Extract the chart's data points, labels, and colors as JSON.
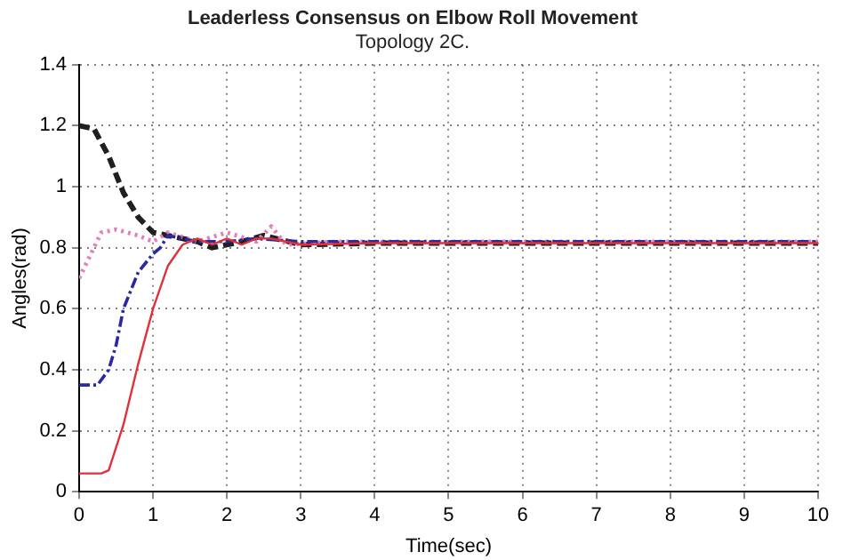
{
  "chart_data": {
    "type": "line",
    "title": "Leaderless Consensus on Elbow Roll Movement",
    "subtitle": "Topology 2C.",
    "xlabel": "Time(sec)",
    "ylabel": "Angles(rad)",
    "xlim": [
      0,
      10
    ],
    "xticks": [
      0,
      1,
      2,
      3,
      4,
      5,
      6,
      7,
      8,
      9,
      10
    ],
    "ylim": [
      0,
      1.4
    ],
    "yticks": [
      0,
      0.2,
      0.4,
      0.6,
      0.8,
      1,
      1.2,
      1.4
    ],
    "grid": true,
    "marker": "none",
    "series": [
      {
        "color": "#e0303a",
        "line_style": "solid",
        "x": [
          0,
          0.3,
          0.4,
          0.6,
          0.8,
          1.0,
          1.2,
          1.4,
          1.6,
          1.8,
          2.0,
          2.2,
          2.4,
          2.6,
          3,
          4,
          10
        ],
        "values": [
          0.06,
          0.06,
          0.07,
          0.22,
          0.42,
          0.6,
          0.74,
          0.81,
          0.83,
          0.81,
          0.83,
          0.81,
          0.83,
          0.83,
          0.81,
          0.815,
          0.815
        ]
      },
      {
        "color": "#2a2aa0",
        "line_style": "dashdot",
        "x": [
          0,
          0.25,
          0.4,
          0.5,
          0.6,
          0.8,
          1.0,
          1.1,
          1.2,
          1.4,
          1.6,
          2,
          2.4,
          3,
          10
        ],
        "values": [
          0.35,
          0.35,
          0.4,
          0.48,
          0.6,
          0.72,
          0.78,
          0.8,
          0.84,
          0.83,
          0.82,
          0.82,
          0.83,
          0.82,
          0.82
        ]
      },
      {
        "color": "#e080c0",
        "line_style": "dotted",
        "x": [
          0,
          0.1,
          0.2,
          0.3,
          0.5,
          0.8,
          1.0,
          1.2,
          1.6,
          2.0,
          2.4,
          2.6,
          2.8,
          3.5,
          10
        ],
        "values": [
          0.7,
          0.75,
          0.8,
          0.85,
          0.86,
          0.84,
          0.82,
          0.85,
          0.82,
          0.85,
          0.82,
          0.87,
          0.81,
          0.82,
          0.82
        ]
      },
      {
        "color": "#202020",
        "line_style": "dashed",
        "x": [
          0,
          0.2,
          0.4,
          0.6,
          0.8,
          1.0,
          1.2,
          1.4,
          1.6,
          1.8,
          2.2,
          2.5,
          3,
          4,
          10
        ],
        "values": [
          1.2,
          1.19,
          1.1,
          0.98,
          0.9,
          0.85,
          0.84,
          0.83,
          0.82,
          0.8,
          0.82,
          0.84,
          0.81,
          0.815,
          0.815
        ]
      }
    ]
  }
}
